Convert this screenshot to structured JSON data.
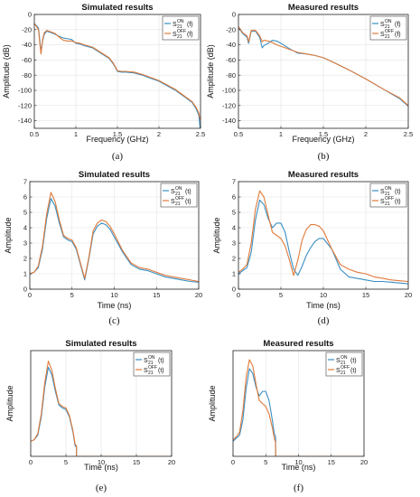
{
  "chart_data": [
    {
      "id": "a",
      "type": "line",
      "caption": "(a)",
      "title": "Simulated results",
      "xlabel": "Frequency (GHz)",
      "ylabel": "Amplitude (dB)",
      "xlim": [
        0.5,
        2.5
      ],
      "ylim": [
        -150,
        0
      ],
      "xticks": [
        "0.5",
        "1",
        "1.5",
        "2",
        "2.5"
      ],
      "yticks": [
        "-140",
        "-120",
        "-100",
        "-80",
        "-60",
        "-40",
        "-20",
        "0"
      ],
      "xtick_values": [
        0.5,
        1,
        1.5,
        2,
        2.5
      ],
      "ytick_values": [
        -140,
        -120,
        -100,
        -80,
        -60,
        -40,
        -20,
        0
      ],
      "legend_position": "top-right",
      "series": [
        {
          "legend_base": "S",
          "legend_sup": "ON",
          "legend_sub": "21",
          "legend_arg": "(f)",
          "color": "#3a8fc4",
          "x": [
            0.5,
            0.52,
            0.55,
            0.57,
            0.58,
            0.6,
            0.62,
            0.65,
            0.7,
            0.75,
            0.8,
            0.85,
            0.9,
            0.95,
            1.0,
            1.05,
            1.1,
            1.2,
            1.3,
            1.4,
            1.45,
            1.5,
            1.55,
            1.6,
            1.7,
            1.8,
            1.9,
            2.0,
            2.1,
            2.2,
            2.3,
            2.4,
            2.45,
            2.48,
            2.5
          ],
          "y": [
            -12,
            -14,
            -18,
            -38,
            -50,
            -35,
            -26,
            -22,
            -24,
            -26,
            -29,
            -31,
            -32,
            -33,
            -38,
            -39,
            -41,
            -44,
            -51,
            -58,
            -65,
            -75,
            -76,
            -76,
            -77,
            -80,
            -84,
            -88,
            -94,
            -100,
            -108,
            -116,
            -125,
            -133,
            -155
          ]
        },
        {
          "legend_base": "S",
          "legend_sup": "OFF",
          "legend_sub": "21",
          "legend_arg": "(f)",
          "color": "#e07a3a",
          "x": [
            0.5,
            0.52,
            0.55,
            0.57,
            0.58,
            0.6,
            0.62,
            0.65,
            0.7,
            0.75,
            0.8,
            0.85,
            0.9,
            0.95,
            1.0,
            1.05,
            1.1,
            1.2,
            1.3,
            1.4,
            1.45,
            1.5,
            1.55,
            1.6,
            1.7,
            1.8,
            1.9,
            2.0,
            2.1,
            2.2,
            2.3,
            2.4,
            2.45,
            2.48,
            2.5
          ],
          "y": [
            -12,
            -15,
            -20,
            -42,
            -52,
            -33,
            -24,
            -21,
            -23,
            -25,
            -30,
            -34,
            -35,
            -35,
            -37,
            -38,
            -40,
            -43,
            -50,
            -57,
            -64,
            -74,
            -75,
            -75,
            -76,
            -79,
            -83,
            -87,
            -93,
            -99,
            -107,
            -115,
            -123,
            -130,
            -140
          ]
        }
      ]
    },
    {
      "id": "b",
      "type": "line",
      "caption": "(b)",
      "title": "Measured results",
      "xlabel": "Frequency (GHz)",
      "ylabel": "Amplitude (dB)",
      "xlim": [
        0.5,
        2.5
      ],
      "ylim": [
        -150,
        0
      ],
      "xticks": [
        "0.5",
        "1",
        "1.5",
        "2",
        "2.5"
      ],
      "yticks": [
        "-140",
        "-120",
        "-100",
        "-80",
        "-60",
        "-40",
        "-20",
        "0"
      ],
      "xtick_values": [
        0.5,
        1,
        1.5,
        2,
        2.5
      ],
      "ytick_values": [
        -140,
        -120,
        -100,
        -80,
        -60,
        -40,
        -20,
        0
      ],
      "legend_position": "top-right",
      "series": [
        {
          "legend_base": "S",
          "legend_sup": "ON",
          "legend_sub": "21",
          "legend_arg": "(f)",
          "color": "#3a8fc4",
          "x": [
            0.5,
            0.55,
            0.6,
            0.62,
            0.65,
            0.7,
            0.75,
            0.78,
            0.8,
            0.85,
            0.9,
            0.95,
            1.0,
            1.1,
            1.2,
            1.3,
            1.4,
            1.5,
            1.6,
            1.8,
            2.0,
            2.2,
            2.4,
            2.5
          ],
          "y": [
            -17,
            -25,
            -30,
            -38,
            -22,
            -22,
            -30,
            -44,
            -41,
            -38,
            -34,
            -35,
            -38,
            -45,
            -51,
            -52,
            -54,
            -57,
            -62,
            -73,
            -85,
            -98,
            -111,
            -121
          ]
        },
        {
          "legend_base": "S",
          "legend_sup": "OFF",
          "legend_sub": "21",
          "legend_arg": "(f)",
          "color": "#e07a3a",
          "x": [
            0.5,
            0.55,
            0.6,
            0.62,
            0.65,
            0.7,
            0.75,
            0.78,
            0.8,
            0.85,
            0.9,
            0.95,
            1.0,
            1.1,
            1.2,
            1.3,
            1.4,
            1.5,
            1.6,
            1.8,
            2.0,
            2.2,
            2.4,
            2.5
          ],
          "y": [
            -16,
            -24,
            -28,
            -36,
            -21,
            -21,
            -28,
            -36,
            -34,
            -35,
            -37,
            -40,
            -42,
            -46,
            -50,
            -52,
            -54,
            -57,
            -62,
            -73,
            -85,
            -98,
            -110,
            -120
          ]
        }
      ]
    },
    {
      "id": "c",
      "type": "line",
      "caption": "(c)",
      "title": "Simulated results",
      "xlabel": "Time (ns)",
      "ylabel": "Amplitude",
      "xlim": [
        0,
        20
      ],
      "ylim": [
        0,
        7
      ],
      "xticks": [
        "0",
        "5",
        "10",
        "15",
        "20"
      ],
      "yticks": [
        "0",
        "1",
        "2",
        "3",
        "4",
        "5",
        "6",
        "7"
      ],
      "xtick_values": [
        0,
        5,
        10,
        15,
        20
      ],
      "ytick_values": [
        0,
        1,
        2,
        3,
        4,
        5,
        6,
        7
      ],
      "legend_position": "top-right",
      "series": [
        {
          "legend_base": "S",
          "legend_sup": "ON",
          "legend_sub": "21",
          "legend_arg": "(t)",
          "color": "#3a8fc4",
          "x": [
            0,
            0.5,
            1,
            1.5,
            2,
            2.5,
            3,
            3.5,
            4,
            4.5,
            5,
            5.5,
            6,
            6.5,
            7,
            7.5,
            8,
            8.5,
            9,
            9.5,
            10,
            11,
            12,
            13,
            14,
            15,
            16,
            17,
            18,
            19,
            20
          ],
          "y": [
            1.0,
            1.1,
            1.4,
            2.6,
            4.6,
            5.9,
            5.4,
            4.3,
            3.4,
            3.2,
            3.1,
            2.6,
            1.6,
            0.6,
            2.0,
            3.6,
            4.1,
            4.3,
            4.2,
            3.9,
            3.4,
            2.4,
            1.6,
            1.3,
            1.2,
            1.0,
            0.8,
            0.7,
            0.6,
            0.5,
            0.45
          ]
        },
        {
          "legend_base": "S",
          "legend_sup": "OFF",
          "legend_sub": "21",
          "legend_arg": "(t)",
          "color": "#e07a3a",
          "x": [
            0,
            0.5,
            1,
            1.5,
            2,
            2.5,
            3,
            3.5,
            4,
            4.5,
            5,
            5.5,
            6,
            6.5,
            7,
            7.5,
            8,
            8.5,
            9,
            9.5,
            10,
            11,
            12,
            13,
            14,
            15,
            16,
            17,
            18,
            19,
            20
          ],
          "y": [
            1.0,
            1.1,
            1.5,
            2.8,
            4.9,
            6.3,
            5.7,
            4.5,
            3.5,
            3.3,
            3.2,
            2.7,
            1.7,
            0.7,
            2.1,
            3.8,
            4.3,
            4.5,
            4.4,
            4.1,
            3.6,
            2.5,
            1.7,
            1.4,
            1.3,
            1.1,
            0.9,
            0.8,
            0.7,
            0.6,
            0.5
          ]
        }
      ]
    },
    {
      "id": "d",
      "type": "line",
      "caption": "(d)",
      "title": "Measured results",
      "xlabel": "Time (ns)",
      "ylabel": "Amplitude",
      "xlim": [
        0,
        20
      ],
      "ylim": [
        0,
        7
      ],
      "xticks": [
        "0",
        "5",
        "10",
        "15",
        "20"
      ],
      "yticks": [
        "0",
        "1",
        "2",
        "3",
        "4",
        "5",
        "6",
        "7"
      ],
      "xtick_values": [
        0,
        5,
        10,
        15,
        20
      ],
      "ytick_values": [
        0,
        1,
        2,
        3,
        4,
        5,
        6,
        7
      ],
      "legend_position": "top-right",
      "series": [
        {
          "legend_base": "S",
          "legend_sup": "ON",
          "legend_sub": "21",
          "legend_arg": "(t)",
          "color": "#3a8fc4",
          "x": [
            0,
            0.5,
            1,
            1.5,
            2,
            2.5,
            3,
            3.5,
            4,
            4.5,
            5,
            5.5,
            6,
            6.5,
            7,
            7.5,
            8,
            8.5,
            9,
            9.5,
            10,
            11,
            12,
            13,
            14,
            15,
            16,
            17,
            18,
            19,
            20
          ],
          "y": [
            1.0,
            1.2,
            1.4,
            2.4,
            4.5,
            5.8,
            5.5,
            4.6,
            4.0,
            4.3,
            4.3,
            3.7,
            2.4,
            1.3,
            0.9,
            1.5,
            2.2,
            2.7,
            3.1,
            3.3,
            3.3,
            2.6,
            1.3,
            0.8,
            0.7,
            0.6,
            0.5,
            0.5,
            0.45,
            0.4,
            0.35
          ]
        },
        {
          "legend_base": "S",
          "legend_sup": "OFF",
          "legend_sub": "21",
          "legend_arg": "(t)",
          "color": "#e07a3a",
          "x": [
            0,
            0.5,
            1,
            1.5,
            2,
            2.5,
            3,
            3.5,
            4,
            4.5,
            5,
            5.5,
            6,
            6.5,
            7,
            7.5,
            8,
            8.5,
            9,
            9.5,
            10,
            11,
            12,
            13,
            14,
            15,
            16,
            17,
            18,
            19,
            20
          ],
          "y": [
            1.1,
            1.3,
            1.6,
            3.0,
            5.2,
            6.4,
            6.0,
            4.8,
            3.7,
            3.5,
            3.3,
            2.8,
            1.9,
            0.9,
            1.9,
            3.2,
            3.9,
            4.2,
            4.2,
            4.1,
            3.8,
            2.6,
            1.6,
            1.3,
            1.1,
            1.0,
            0.8,
            0.7,
            0.6,
            0.55,
            0.5
          ]
        }
      ]
    },
    {
      "id": "e",
      "type": "line",
      "caption": "(e)",
      "title": "Simulated results",
      "xlabel": "Time (ns)",
      "ylabel": "Amplitude",
      "xlim": [
        0,
        20
      ],
      "ylim": [
        0,
        7
      ],
      "xticks": [
        "0",
        "5",
        "10",
        "15",
        "20"
      ],
      "yticks": [],
      "xtick_values": [
        0,
        5,
        10,
        15,
        20
      ],
      "ytick_values": [],
      "legend_position": "top-right",
      "series": [
        {
          "legend_base": "S",
          "legend_sup": "ON",
          "legend_sub": "21",
          "legend_arg": "(t)",
          "color": "#3a8fc4",
          "x": [
            0,
            0.5,
            1,
            1.5,
            2,
            2.5,
            3,
            3.5,
            4,
            4.5,
            5,
            5.5,
            6,
            6.3,
            6.5,
            6.5,
            20
          ],
          "y": [
            1.0,
            1.1,
            1.4,
            2.6,
            4.6,
            5.9,
            5.4,
            4.3,
            3.4,
            3.2,
            3.1,
            2.6,
            1.6,
            0.7,
            0.6,
            0,
            0
          ]
        },
        {
          "legend_base": "S",
          "legend_sup": "OFF",
          "legend_sub": "21",
          "legend_arg": "(t)",
          "color": "#e07a3a",
          "x": [
            0,
            0.5,
            1,
            1.5,
            2,
            2.5,
            3,
            3.5,
            4,
            4.5,
            5,
            5.5,
            6,
            6.3,
            6.5,
            6.5,
            20
          ],
          "y": [
            1.0,
            1.1,
            1.5,
            2.8,
            4.9,
            6.3,
            5.7,
            4.5,
            3.5,
            3.3,
            3.2,
            2.7,
            1.7,
            0.8,
            0.7,
            0,
            0
          ]
        }
      ]
    },
    {
      "id": "f",
      "type": "line",
      "caption": "(f)",
      "title": "Measured results",
      "xlabel": "Time (ns)",
      "ylabel": "Amplitude",
      "xlim": [
        0,
        20
      ],
      "ylim": [
        0,
        7
      ],
      "xticks": [
        "0",
        "5",
        "10",
        "15",
        "20"
      ],
      "yticks": [],
      "xtick_values": [
        0,
        5,
        10,
        15,
        20
      ],
      "ytick_values": [],
      "legend_position": "top-right",
      "series": [
        {
          "legend_base": "S",
          "legend_sup": "ON",
          "legend_sub": "21",
          "legend_arg": "(t)",
          "color": "#3a8fc4",
          "x": [
            0,
            0.5,
            1,
            1.5,
            2,
            2.5,
            3,
            3.5,
            4,
            4.5,
            5,
            5.5,
            6,
            6.3,
            6.5,
            6.5,
            20
          ],
          "y": [
            1.0,
            1.2,
            1.4,
            2.4,
            4.5,
            5.8,
            5.5,
            4.6,
            4.0,
            4.3,
            4.3,
            3.7,
            2.4,
            1.5,
            1.3,
            0,
            0
          ]
        },
        {
          "legend_base": "S",
          "legend_sup": "OFF",
          "legend_sub": "21",
          "legend_arg": "(t)",
          "color": "#e07a3a",
          "x": [
            0,
            0.5,
            1,
            1.5,
            2,
            2.5,
            3,
            3.5,
            4,
            4.5,
            5,
            5.5,
            6,
            6.3,
            6.5,
            6.5,
            20
          ],
          "y": [
            1.1,
            1.3,
            1.6,
            3.0,
            5.2,
            6.4,
            6.0,
            4.8,
            3.7,
            3.5,
            3.3,
            2.8,
            1.9,
            1.2,
            0.9,
            0,
            0
          ]
        }
      ]
    }
  ]
}
